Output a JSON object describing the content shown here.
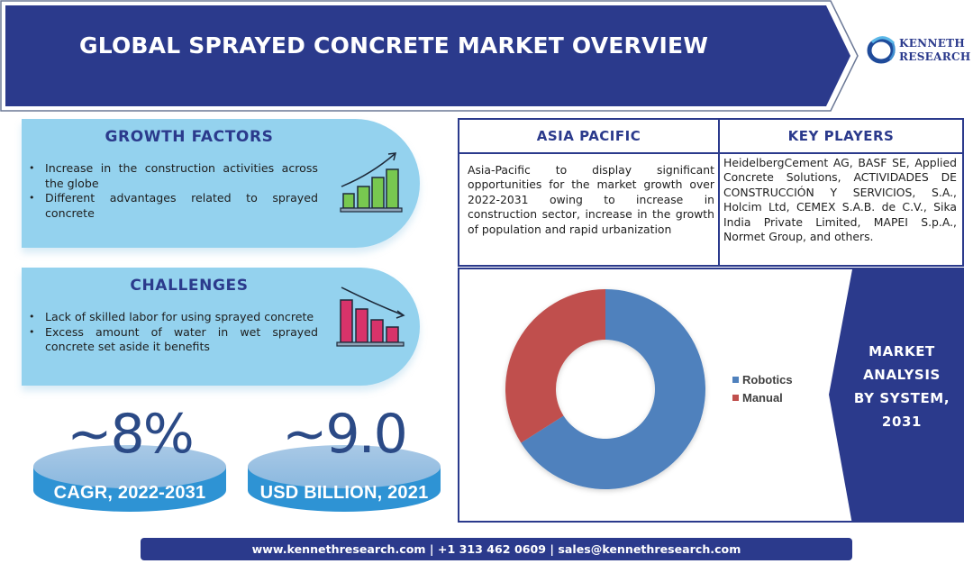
{
  "header": {
    "title": "GLOBAL SPRAYED CONCRETE MARKET OVERVIEW",
    "banner_color": "#2b3a8c"
  },
  "logo": {
    "line1": "KENNETH",
    "line2": "RESEARCH",
    "icon": "ring-swoosh-logo-icon"
  },
  "growth_factors": {
    "title": "GROWTH FACTORS",
    "items": [
      "Increase in the construction activities across the globe",
      "Different advantages related to sprayed concrete"
    ],
    "icon": "rising-bar-chart-icon",
    "icon_color": "#78c850"
  },
  "challenges": {
    "title": "CHALLENGES",
    "items": [
      "Lack of skilled labor for using sprayed concrete",
      "Excess amount of water in wet sprayed concrete set aside it benefits"
    ],
    "icon": "falling-bar-chart-icon",
    "icon_color": "#d8336a"
  },
  "stats": [
    {
      "value": "~8%",
      "label": "CAGR, 2022-2031"
    },
    {
      "value": "~9.0",
      "label": "USD BILLION, 2021"
    }
  ],
  "asia_pacific": {
    "title": "ASIA PACIFIC",
    "text": "Asia-Pacific to display significant opportunities for the market growth over 2022-2031 owing to increase in construction sector, increase in the growth of population and rapid urbanization"
  },
  "key_players": {
    "title": "KEY PLAYERS",
    "text": "HeidelbergCement AG, BASF SE, Applied Concrete Solutions, ACTIVIDADES DE CONSTRUCCIÓN Y SERVICIOS, S.A., Holcim Ltd, CEMEX S.A.B. de C.V., Sika India Private Limited, MAPEI S.p.A., Normet Group, and others."
  },
  "market_analysis": {
    "label_lines": [
      "MARKET",
      "ANALYSIS",
      "BY SYSTEM,",
      "2031"
    ]
  },
  "chart_data": {
    "type": "pie",
    "subtype": "donut",
    "title": "MARKET ANALYSIS BY SYSTEM, 2031",
    "categories": [
      "Robotics",
      "Manual"
    ],
    "values": [
      66,
      34
    ],
    "unit": "% share (estimated from arc angles)",
    "colors": [
      "#4f81bd",
      "#c0504d"
    ],
    "start_angle_deg": 0,
    "direction": "clockwise",
    "legend_position": "right"
  },
  "footer": {
    "website": "www.kennethresearch.com",
    "phone": "+1 313 462 0609",
    "email": "sales@kennethresearch.com",
    "separator": " | "
  }
}
